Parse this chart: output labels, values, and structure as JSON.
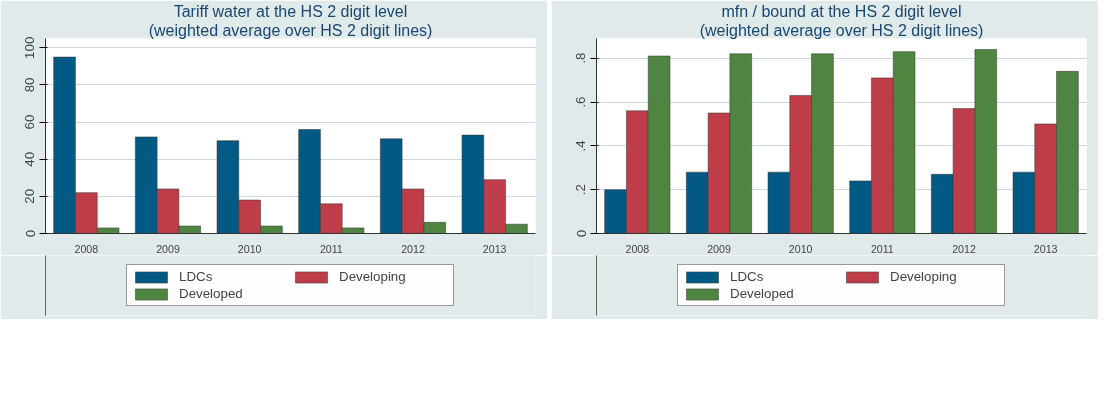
{
  "chart_data": [
    {
      "type": "bar",
      "title": "Tariff water at the HS 2 digit level",
      "subtitle": "(weighted average over HS 2 digit lines)",
      "categories": [
        "2008",
        "2009",
        "2010",
        "2011",
        "2012",
        "2013"
      ],
      "series": [
        {
          "name": "LDCs",
          "color": "#025a84",
          "values": [
            95,
            52,
            50,
            56,
            51,
            53
          ]
        },
        {
          "name": "Developing",
          "color": "#be3d49",
          "values": [
            22,
            24,
            18,
            16,
            24,
            29
          ]
        },
        {
          "name": "Developed",
          "color": "#4e8540",
          "values": [
            3,
            4,
            4,
            3,
            6,
            5
          ]
        }
      ],
      "ylim": [
        0,
        105
      ],
      "yticks": [
        0,
        20,
        40,
        60,
        80,
        100
      ],
      "grid": "y",
      "legend": "bottom"
    },
    {
      "type": "bar",
      "title": "mfn / bound at the HS 2 digit level",
      "subtitle": "(weighted average over HS 2 digit lines)",
      "categories": [
        "2008",
        "2009",
        "2010",
        "2011",
        "2012",
        "2013"
      ],
      "series": [
        {
          "name": "LDCs",
          "color": "#025a84",
          "values": [
            0.2,
            0.28,
            0.28,
            0.24,
            0.27,
            0.28
          ]
        },
        {
          "name": "Developing",
          "color": "#be3d49",
          "values": [
            0.56,
            0.55,
            0.63,
            0.71,
            0.57,
            0.5
          ]
        },
        {
          "name": "Developed",
          "color": "#4e8540",
          "values": [
            0.81,
            0.82,
            0.82,
            0.83,
            0.84,
            0.74
          ]
        }
      ],
      "ylim": [
        0,
        0.89
      ],
      "yticks": [
        0,
        {
          "value": 0.2,
          "label": ".2"
        },
        {
          "value": 0.4,
          "label": ".4"
        },
        {
          "value": 0.6,
          "label": ".6"
        },
        {
          "value": 0.8,
          "label": ".8"
        }
      ],
      "grid": "y",
      "legend": "bottom"
    }
  ]
}
